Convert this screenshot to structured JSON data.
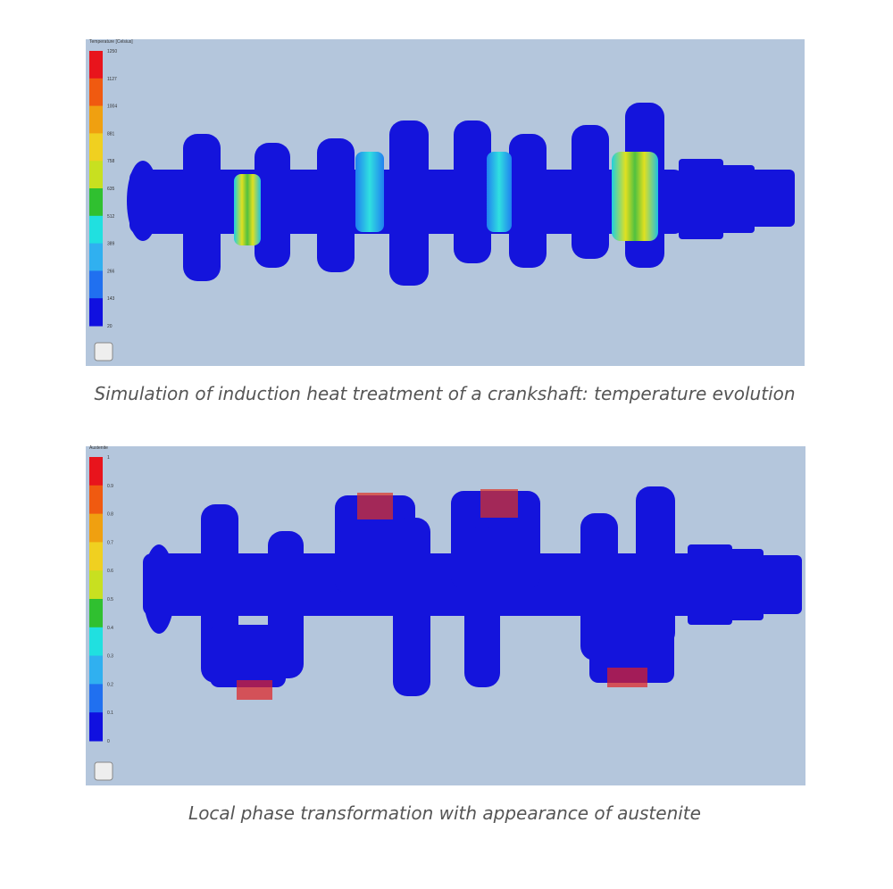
{
  "figures": [
    {
      "legend_title": "Temperature [Celsius]",
      "legend_labels": [
        "1250",
        "1127",
        "1004",
        "881",
        "758",
        "635",
        "512",
        "389",
        "266",
        "143",
        "20"
      ],
      "caption": "Simulation of induction heat treatment of a crankshaft: temperature evolution"
    },
    {
      "legend_title": "Austenite",
      "legend_labels": [
        "1",
        "0.9",
        "0.8",
        "0.7",
        "0.6",
        "0.5",
        "0.4",
        "0.3",
        "0.2",
        "0.1",
        "0"
      ],
      "caption": "Local phase transformation with appearance of austenite"
    }
  ]
}
